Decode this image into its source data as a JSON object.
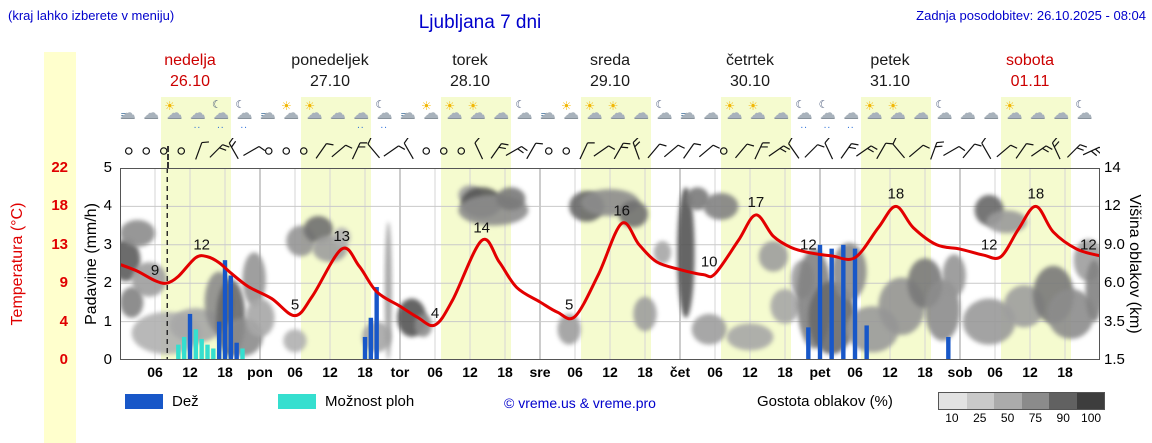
{
  "header": {
    "menu_hint": "(kraj lahko izberete v meniju)",
    "title": "Ljubljana 7 dni",
    "updated": "Zadnja posodobitev: 26.10.2025 - 08:04"
  },
  "days": [
    {
      "name": "nedelja",
      "date": "26.10",
      "weekend": true
    },
    {
      "name": "ponedeljek",
      "date": "27.10",
      "weekend": false
    },
    {
      "name": "torek",
      "date": "28.10",
      "weekend": false
    },
    {
      "name": "sreda",
      "date": "29.10",
      "weekend": false
    },
    {
      "name": "četrtek",
      "date": "30.10",
      "weekend": false
    },
    {
      "name": "petek",
      "date": "31.10",
      "weekend": false
    },
    {
      "name": "sobota",
      "date": "01.11",
      "weekend": true
    }
  ],
  "axes": {
    "temp_label": "Temperatura (°C)",
    "temp_ticks": [
      "22",
      "18",
      "13",
      "9",
      "4",
      "0"
    ],
    "precip_label": "Padavine (mm/h)",
    "precip_ticks": [
      "5",
      "4",
      "3",
      "2",
      "1",
      "0"
    ],
    "cloud_label": "Višina oblakov (km)",
    "cloud_ticks": [
      "14",
      "12",
      "9.0",
      "6.0",
      "3.5",
      "1.5"
    ]
  },
  "x_ticks": [
    "06",
    "12",
    "18",
    "pon",
    "06",
    "12",
    "18",
    "tor",
    "06",
    "12",
    "18",
    "sre",
    "06",
    "12",
    "18",
    "čet",
    "06",
    "12",
    "18",
    "pet",
    "06",
    "12",
    "18",
    "sob",
    "06",
    "12",
    "18"
  ],
  "legend": {
    "rain_label": "Dež",
    "shower_label": "Možnost ploh",
    "credit": "© vreme.us & vreme.pro",
    "cloud_label": "Gostota oblakov (%)",
    "cloud_scale": [
      "10",
      "25",
      "50",
      "75",
      "90",
      "100"
    ]
  },
  "colors": {
    "rain": "#1857c8",
    "shower": "#35dfcf",
    "temp_line": "#e30000",
    "accent_blue": "#0000cc",
    "weekend_red": "#cc0000",
    "cloud_scale_colors": [
      "#e2e2e2",
      "#c9c9c9",
      "#ababab",
      "#8b8b8b",
      "#616161",
      "#3d3d3d"
    ]
  },
  "chart_data": {
    "type": "meteogram",
    "x_unit": "hours from ned 26.10 00:00, total 168 h (7 days)",
    "now_hour": 8.1,
    "daylight": [
      7,
      19
    ],
    "temperature": {
      "unit": "°C",
      "axis_range": [
        0,
        22.5
      ],
      "points": [
        [
          0,
          11.2
        ],
        [
          3,
          10.4
        ],
        [
          6,
          9.3
        ],
        [
          8,
          9.0
        ],
        [
          10,
          9.8
        ],
        [
          13,
          12.0
        ],
        [
          15,
          12.1
        ],
        [
          17,
          11.4
        ],
        [
          19,
          10.2
        ],
        [
          22,
          8.6
        ],
        [
          26,
          7.2
        ],
        [
          30,
          5.2
        ],
        [
          33,
          7.5
        ],
        [
          38,
          13.0
        ],
        [
          41,
          11.0
        ],
        [
          44,
          8.0
        ],
        [
          48,
          6.3
        ],
        [
          51,
          5.0
        ],
        [
          54,
          4.1
        ],
        [
          57,
          7.0
        ],
        [
          62,
          14.0
        ],
        [
          65,
          11.5
        ],
        [
          68,
          8.5
        ],
        [
          72,
          6.8
        ],
        [
          75,
          5.6
        ],
        [
          78,
          5.1
        ],
        [
          82,
          10.0
        ],
        [
          86,
          16.0
        ],
        [
          89,
          13.5
        ],
        [
          92,
          11.5
        ],
        [
          96,
          10.6
        ],
        [
          100,
          10.0
        ],
        [
          102,
          10.1
        ],
        [
          106,
          14.0
        ],
        [
          109,
          17.0
        ],
        [
          112,
          14.5
        ],
        [
          115,
          13.2
        ],
        [
          118,
          12.6
        ],
        [
          122,
          12.2
        ],
        [
          126,
          12.0
        ],
        [
          130,
          15.5
        ],
        [
          133,
          18.0
        ],
        [
          136,
          15.5
        ],
        [
          140,
          13.5
        ],
        [
          144,
          13.0
        ],
        [
          148,
          12.3
        ],
        [
          151,
          12.1
        ],
        [
          154,
          15.3
        ],
        [
          157,
          18.0
        ],
        [
          160,
          15.0
        ],
        [
          164,
          13.0
        ],
        [
          168,
          12.2
        ]
      ],
      "labels": [
        [
          6,
          9
        ],
        [
          14,
          12
        ],
        [
          30,
          5
        ],
        [
          38,
          13
        ],
        [
          54,
          4
        ],
        [
          62,
          14
        ],
        [
          77,
          5
        ],
        [
          86,
          16
        ],
        [
          101,
          10
        ],
        [
          109,
          17
        ],
        [
          118,
          12
        ],
        [
          133,
          18
        ],
        [
          149,
          12
        ],
        [
          157,
          18
        ],
        [
          166,
          12
        ]
      ]
    },
    "rain_bars": {
      "unit": "mm/h",
      "bars": [
        [
          12,
          1.2
        ],
        [
          17,
          1.0
        ],
        [
          18,
          2.6
        ],
        [
          19,
          2.2
        ],
        [
          20,
          0.45
        ],
        [
          42,
          0.6
        ],
        [
          43,
          1.1
        ],
        [
          44,
          1.9
        ],
        [
          118,
          0.85
        ],
        [
          120,
          3.0
        ],
        [
          122,
          2.9
        ],
        [
          124,
          3.0
        ],
        [
          126,
          2.9
        ],
        [
          128,
          0.9
        ],
        [
          142,
          0.6
        ]
      ]
    },
    "shower_bars": {
      "unit": "mm/h",
      "bars": [
        [
          10,
          0.4
        ],
        [
          11,
          0.6
        ],
        [
          13,
          0.8
        ],
        [
          14,
          0.55
        ],
        [
          15,
          0.4
        ],
        [
          16,
          0.3
        ],
        [
          21,
          0.3
        ]
      ]
    },
    "clouds": [
      [
        1,
        2.6,
        5,
        1.1,
        0.75
      ],
      [
        3,
        3.3,
        6,
        0.7,
        0.5
      ],
      [
        5,
        2.1,
        6,
        0.9,
        0.4
      ],
      [
        2,
        1.5,
        4,
        0.8,
        0.55
      ],
      [
        8,
        0.7,
        12,
        1.1,
        0.3
      ],
      [
        13,
        0.9,
        9,
        0.9,
        0.35
      ],
      [
        17,
        1.5,
        5,
        1.6,
        0.5
      ],
      [
        19,
        1.1,
        5,
        2.0,
        0.7
      ],
      [
        21,
        0.6,
        7,
        1.0,
        0.5
      ],
      [
        23,
        2.1,
        4,
        1.4,
        0.45
      ],
      [
        24,
        1.1,
        5,
        1.0,
        0.35
      ],
      [
        30,
        0.5,
        4,
        0.6,
        0.3
      ],
      [
        31,
        3.1,
        5,
        0.8,
        0.45
      ],
      [
        34,
        3.4,
        5,
        0.7,
        0.65
      ],
      [
        36,
        2.9,
        6,
        0.7,
        0.4
      ],
      [
        38,
        3.2,
        3,
        0.5,
        0.3
      ],
      [
        44,
        0.6,
        5,
        0.8,
        0.35
      ],
      [
        46,
        1.8,
        1.2,
        3.6,
        0.4
      ],
      [
        50,
        1.1,
        5,
        1.0,
        0.8
      ],
      [
        52,
        0.9,
        3,
        0.6,
        0.5
      ],
      [
        60,
        4.3,
        4,
        0.5,
        0.4
      ],
      [
        62,
        4.1,
        7,
        0.8,
        0.8
      ],
      [
        64,
        3.9,
        12,
        0.8,
        0.5
      ],
      [
        67,
        4.2,
        5,
        0.6,
        0.6
      ],
      [
        77,
        0.8,
        4,
        0.8,
        0.4
      ],
      [
        80,
        4.0,
        6,
        0.8,
        0.7
      ],
      [
        84,
        4.1,
        10,
        0.7,
        0.5
      ],
      [
        88,
        3.8,
        5,
        0.7,
        0.65
      ],
      [
        90,
        1.2,
        4,
        0.9,
        0.4
      ],
      [
        93,
        2.8,
        3,
        0.6,
        0.35
      ],
      [
        97,
        2.8,
        3,
        3.4,
        0.8
      ],
      [
        99,
        4.2,
        4,
        0.6,
        0.6
      ],
      [
        101,
        0.8,
        6,
        0.8,
        0.4
      ],
      [
        103,
        4.0,
        6,
        0.7,
        0.55
      ],
      [
        108,
        0.6,
        8,
        0.7,
        0.35
      ],
      [
        112,
        2.7,
        5,
        0.8,
        0.4
      ],
      [
        114,
        1.4,
        5,
        0.9,
        0.35
      ],
      [
        117,
        2.1,
        4,
        1.0,
        0.4
      ],
      [
        119,
        1.6,
        6,
        2.6,
        0.55
      ],
      [
        122,
        1.1,
        8,
        1.9,
        0.68
      ],
      [
        125,
        2.3,
        6,
        1.5,
        0.5
      ],
      [
        129,
        0.8,
        9,
        1.2,
        0.42
      ],
      [
        134,
        1.4,
        8,
        1.5,
        0.45
      ],
      [
        138,
        2.0,
        6,
        1.3,
        0.6
      ],
      [
        141,
        1.3,
        6,
        1.6,
        0.5
      ],
      [
        143,
        2.2,
        4,
        1.1,
        0.45
      ],
      [
        149,
        3.9,
        5,
        0.8,
        0.7
      ],
      [
        152,
        3.6,
        7,
        0.6,
        0.42
      ],
      [
        149,
        1.0,
        9,
        1.2,
        0.42
      ],
      [
        155,
        1.4,
        7,
        1.1,
        0.4
      ],
      [
        160,
        1.7,
        7,
        1.5,
        0.6
      ],
      [
        163,
        1.2,
        8,
        1.3,
        0.5
      ],
      [
        166,
        2.6,
        5,
        1.1,
        0.4
      ],
      [
        167,
        1.8,
        3,
        1.6,
        0.55
      ]
    ],
    "icons": [
      [
        "fog",
        "cloud",
        "suncloud",
        "rain",
        "moonrain",
        "moonrain"
      ],
      [
        "fog",
        "suncloud",
        "suncloud",
        "cloud",
        "rain",
        "moonrain"
      ],
      [
        "fog",
        "suncloud",
        "suncloud",
        "suncloud",
        "cloud",
        "mooncloud"
      ],
      [
        "fog",
        "suncloud",
        "suncloud",
        "suncloud",
        "cloud",
        "mooncloud"
      ],
      [
        "fog",
        "cloud",
        "suncloud",
        "suncloud",
        "cloud",
        "moonrain"
      ],
      [
        "moonrain",
        "rain",
        "suncloud",
        "suncloud",
        "cloud",
        "mooncloud"
      ],
      [
        "cloud",
        "cloud",
        "suncloud",
        "cloud",
        "cloud",
        "mooncloud"
      ]
    ],
    "wind": {
      "offsets": [
        1.5,
        4.5,
        7.5,
        10.5,
        13.5,
        16.5,
        19.5,
        22.5
      ],
      "ticks": [
        0,
        0,
        0,
        0,
        1,
        2,
        2,
        1,
        0,
        0,
        0,
        1,
        1,
        2,
        1,
        1,
        1,
        0,
        0,
        0,
        1,
        2,
        2,
        1,
        0,
        0,
        1,
        1,
        2,
        2,
        1,
        1,
        1,
        1,
        0,
        1,
        2,
        2,
        1,
        1,
        1,
        2,
        2,
        1,
        1,
        1,
        2,
        1,
        1,
        1,
        1,
        1,
        2,
        2,
        2,
        3
      ],
      "angles": [
        40,
        25,
        55,
        -35,
        20,
        45,
        -30,
        60,
        30,
        45,
        -20,
        35,
        50,
        25,
        -40,
        55,
        -30,
        40,
        20,
        50,
        -25,
        35,
        60,
        30,
        45,
        -35,
        25,
        55,
        30,
        -20,
        40,
        50,
        35,
        50,
        -30,
        40,
        25,
        55,
        -35,
        45,
        -25,
        35,
        55,
        30,
        -40,
        50,
        20,
        60,
        40,
        -30,
        50,
        35,
        55,
        -25,
        45,
        65
      ]
    }
  }
}
